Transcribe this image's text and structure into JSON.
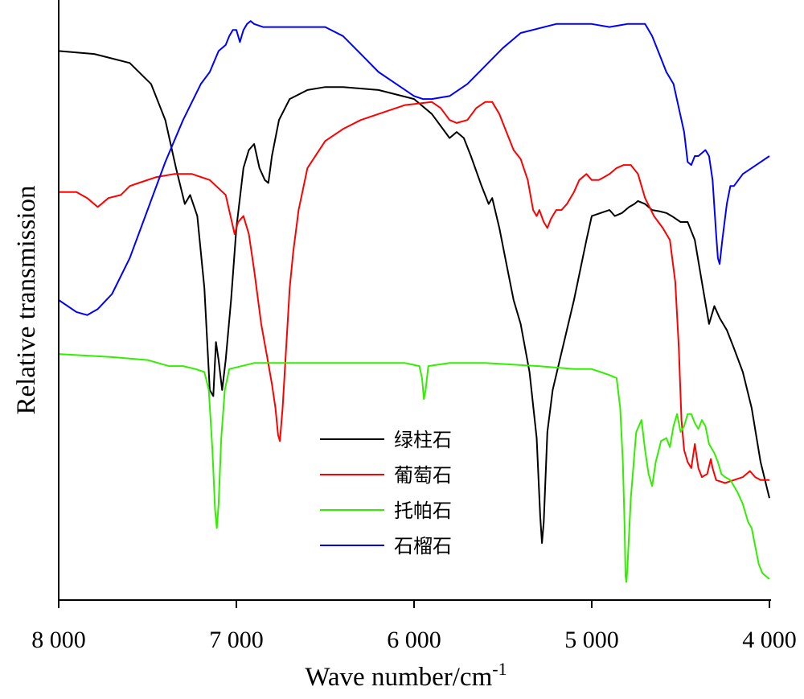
{
  "chart_data": {
    "type": "line",
    "xlabel": "Wave number/cm",
    "xlabel_sup": "-1",
    "ylabel": "Relative transmission",
    "xlim": [
      8000,
      4000
    ],
    "x_reversed": true,
    "ylim": [
      0,
      100
    ],
    "y_ticks_shown": false,
    "grid": false,
    "legend_position": "lower-center",
    "x_ticks": [
      8000,
      7000,
      6000,
      5000,
      4000
    ],
    "x_tick_labels": [
      "8 000",
      "7 000",
      "6 000",
      "5 000",
      "4 000"
    ],
    "series": [
      {
        "name": "绿柱石",
        "color": "#000000",
        "points": [
          [
            8000,
            91.5
          ],
          [
            7800,
            91
          ],
          [
            7600,
            89.5
          ],
          [
            7480,
            86
          ],
          [
            7400,
            80
          ],
          [
            7340,
            72
          ],
          [
            7290,
            66
          ],
          [
            7260,
            67.5
          ],
          [
            7220,
            64
          ],
          [
            7180,
            52
          ],
          [
            7150,
            35
          ],
          [
            7130,
            34
          ],
          [
            7115,
            43
          ],
          [
            7100,
            40
          ],
          [
            7080,
            35
          ],
          [
            7060,
            40
          ],
          [
            7030,
            50
          ],
          [
            7000,
            62
          ],
          [
            6960,
            72
          ],
          [
            6930,
            75
          ],
          [
            6900,
            76
          ],
          [
            6870,
            72
          ],
          [
            6840,
            70
          ],
          [
            6820,
            69.5
          ],
          [
            6800,
            74
          ],
          [
            6760,
            80
          ],
          [
            6700,
            83.5
          ],
          [
            6600,
            85
          ],
          [
            6500,
            85.5
          ],
          [
            6400,
            85.5
          ],
          [
            6200,
            85
          ],
          [
            6000,
            83.5
          ],
          [
            5900,
            81
          ],
          [
            5800,
            77
          ],
          [
            5760,
            78
          ],
          [
            5720,
            77
          ],
          [
            5680,
            74
          ],
          [
            5620,
            69
          ],
          [
            5580,
            66
          ],
          [
            5560,
            67
          ],
          [
            5520,
            62
          ],
          [
            5480,
            56
          ],
          [
            5440,
            50
          ],
          [
            5400,
            46
          ],
          [
            5350,
            38
          ],
          [
            5310,
            27
          ],
          [
            5290,
            14
          ],
          [
            5280,
            9.5
          ],
          [
            5270,
            13
          ],
          [
            5250,
            28
          ],
          [
            5220,
            35
          ],
          [
            5180,
            40
          ],
          [
            5100,
            50
          ],
          [
            5030,
            60
          ],
          [
            5000,
            64
          ],
          [
            4950,
            64.5
          ],
          [
            4900,
            65
          ],
          [
            4870,
            64
          ],
          [
            4830,
            64.5
          ],
          [
            4790,
            65.5
          ],
          [
            4760,
            66
          ],
          [
            4740,
            66.5
          ],
          [
            4700,
            66
          ],
          [
            4660,
            65
          ],
          [
            4620,
            64.8
          ],
          [
            4580,
            64.5
          ],
          [
            4550,
            64
          ],
          [
            4500,
            63
          ],
          [
            4460,
            63
          ],
          [
            4420,
            60
          ],
          [
            4380,
            53
          ],
          [
            4340,
            46
          ],
          [
            4310,
            49
          ],
          [
            4280,
            47
          ],
          [
            4240,
            45
          ],
          [
            4200,
            42
          ],
          [
            4150,
            38
          ],
          [
            4100,
            32
          ],
          [
            4050,
            23
          ],
          [
            4000,
            17
          ]
        ]
      },
      {
        "name": "葡萄石",
        "color": "#ff0000",
        "points": [
          [
            8000,
            68
          ],
          [
            7900,
            68
          ],
          [
            7840,
            67
          ],
          [
            7780,
            65.5
          ],
          [
            7720,
            67
          ],
          [
            7650,
            67.5
          ],
          [
            7600,
            69
          ],
          [
            7550,
            69.5
          ],
          [
            7450,
            70.5
          ],
          [
            7350,
            71
          ],
          [
            7250,
            71
          ],
          [
            7150,
            70
          ],
          [
            7060,
            67.5
          ],
          [
            7010,
            61
          ],
          [
            6990,
            63
          ],
          [
            6960,
            64
          ],
          [
            6930,
            61
          ],
          [
            6900,
            55
          ],
          [
            6860,
            46
          ],
          [
            6830,
            41
          ],
          [
            6800,
            36
          ],
          [
            6780,
            32
          ],
          [
            6765,
            27.5
          ],
          [
            6755,
            26.5
          ],
          [
            6740,
            32
          ],
          [
            6720,
            42
          ],
          [
            6700,
            52
          ],
          [
            6680,
            58
          ],
          [
            6650,
            65
          ],
          [
            6600,
            72
          ],
          [
            6500,
            76.5
          ],
          [
            6400,
            78.5
          ],
          [
            6300,
            80
          ],
          [
            6200,
            81
          ],
          [
            6050,
            82.5
          ],
          [
            5900,
            83
          ],
          [
            5850,
            82
          ],
          [
            5800,
            80
          ],
          [
            5760,
            79.5
          ],
          [
            5700,
            80
          ],
          [
            5650,
            82
          ],
          [
            5600,
            83
          ],
          [
            5560,
            83
          ],
          [
            5520,
            81
          ],
          [
            5480,
            78
          ],
          [
            5440,
            75
          ],
          [
            5400,
            73.5
          ],
          [
            5360,
            70
          ],
          [
            5330,
            65
          ],
          [
            5310,
            64
          ],
          [
            5295,
            65
          ],
          [
            5270,
            63
          ],
          [
            5250,
            62
          ],
          [
            5230,
            63.5
          ],
          [
            5200,
            65
          ],
          [
            5170,
            65
          ],
          [
            5140,
            66
          ],
          [
            5100,
            68
          ],
          [
            5070,
            70
          ],
          [
            5030,
            71
          ],
          [
            5000,
            70
          ],
          [
            4960,
            70
          ],
          [
            4930,
            70.5
          ],
          [
            4900,
            71
          ],
          [
            4860,
            72
          ],
          [
            4820,
            72.5
          ],
          [
            4780,
            72.5
          ],
          [
            4740,
            71
          ],
          [
            4700,
            67
          ],
          [
            4650,
            64
          ],
          [
            4600,
            62
          ],
          [
            4560,
            60
          ],
          [
            4530,
            53
          ],
          [
            4510,
            42
          ],
          [
            4495,
            30
          ],
          [
            4480,
            25
          ],
          [
            4460,
            23
          ],
          [
            4440,
            22
          ],
          [
            4420,
            26
          ],
          [
            4400,
            22
          ],
          [
            4380,
            20.5
          ],
          [
            4350,
            21
          ],
          [
            4330,
            23.5
          ],
          [
            4320,
            22
          ],
          [
            4300,
            20
          ],
          [
            4250,
            19.5
          ],
          [
            4200,
            20
          ],
          [
            4150,
            20.5
          ],
          [
            4110,
            21.5
          ],
          [
            4080,
            20.5
          ],
          [
            4050,
            20
          ],
          [
            4000,
            20
          ]
        ]
      },
      {
        "name": "托帕石",
        "color": "#33ee00",
        "points": [
          [
            8000,
            41
          ],
          [
            7700,
            40.5
          ],
          [
            7500,
            40
          ],
          [
            7380,
            39
          ],
          [
            7300,
            39
          ],
          [
            7230,
            38.5
          ],
          [
            7180,
            38
          ],
          [
            7155,
            35
          ],
          [
            7135,
            25
          ],
          [
            7120,
            15
          ],
          [
            7110,
            12
          ],
          [
            7100,
            16
          ],
          [
            7085,
            27
          ],
          [
            7065,
            35
          ],
          [
            7040,
            38.5
          ],
          [
            6900,
            39.5
          ],
          [
            6600,
            39.5
          ],
          [
            6300,
            39.5
          ],
          [
            6050,
            39.5
          ],
          [
            5970,
            39
          ],
          [
            5955,
            37
          ],
          [
            5945,
            33.5
          ],
          [
            5935,
            35
          ],
          [
            5920,
            39
          ],
          [
            5800,
            39.5
          ],
          [
            5600,
            39.5
          ],
          [
            5300,
            39
          ],
          [
            5100,
            38.5
          ],
          [
            5000,
            38.5
          ],
          [
            4950,
            38
          ],
          [
            4900,
            37.5
          ],
          [
            4860,
            37
          ],
          [
            4840,
            32
          ],
          [
            4825,
            23
          ],
          [
            4815,
            12
          ],
          [
            4810,
            4
          ],
          [
            4805,
            3
          ],
          [
            4800,
            5
          ],
          [
            4780,
            17
          ],
          [
            4750,
            28
          ],
          [
            4720,
            30
          ],
          [
            4700,
            25
          ],
          [
            4680,
            21
          ],
          [
            4660,
            19
          ],
          [
            4640,
            23
          ],
          [
            4610,
            26.5
          ],
          [
            4580,
            27
          ],
          [
            4560,
            25.5
          ],
          [
            4540,
            29
          ],
          [
            4520,
            31
          ],
          [
            4500,
            28
          ],
          [
            4480,
            29
          ],
          [
            4460,
            31
          ],
          [
            4440,
            31
          ],
          [
            4420,
            29.5
          ],
          [
            4400,
            28.5
          ],
          [
            4380,
            30
          ],
          [
            4360,
            29
          ],
          [
            4340,
            26
          ],
          [
            4310,
            24.5
          ],
          [
            4290,
            23
          ],
          [
            4270,
            21
          ],
          [
            4250,
            20.5
          ],
          [
            4220,
            20
          ],
          [
            4200,
            19
          ],
          [
            4180,
            18
          ],
          [
            4150,
            16
          ],
          [
            4120,
            13
          ],
          [
            4100,
            12
          ],
          [
            4080,
            9
          ],
          [
            4060,
            6
          ],
          [
            4040,
            4.5
          ],
          [
            4020,
            4
          ],
          [
            4000,
            3.5
          ]
        ]
      },
      {
        "name": "石榴石",
        "color": "#0000ff",
        "points": [
          [
            8000,
            50
          ],
          [
            7900,
            48
          ],
          [
            7840,
            47.5
          ],
          [
            7780,
            48.5
          ],
          [
            7700,
            51
          ],
          [
            7600,
            57
          ],
          [
            7500,
            65
          ],
          [
            7400,
            73
          ],
          [
            7300,
            80
          ],
          [
            7200,
            86
          ],
          [
            7150,
            88
          ],
          [
            7100,
            91.5
          ],
          [
            7060,
            92.5
          ],
          [
            7040,
            94
          ],
          [
            7020,
            95
          ],
          [
            7000,
            95
          ],
          [
            6980,
            93
          ],
          [
            6960,
            95
          ],
          [
            6940,
            96
          ],
          [
            6920,
            96.5
          ],
          [
            6900,
            96
          ],
          [
            6850,
            95.5
          ],
          [
            6700,
            95.5
          ],
          [
            6500,
            95.5
          ],
          [
            6400,
            94
          ],
          [
            6300,
            91
          ],
          [
            6200,
            88
          ],
          [
            6100,
            86
          ],
          [
            6000,
            84
          ],
          [
            5950,
            83.5
          ],
          [
            5900,
            83.5
          ],
          [
            5800,
            84
          ],
          [
            5700,
            86
          ],
          [
            5600,
            89
          ],
          [
            5500,
            92
          ],
          [
            5400,
            94.5
          ],
          [
            5200,
            96
          ],
          [
            5000,
            96
          ],
          [
            4900,
            95.5
          ],
          [
            4800,
            96
          ],
          [
            4700,
            96
          ],
          [
            4660,
            94
          ],
          [
            4620,
            91
          ],
          [
            4580,
            88
          ],
          [
            4540,
            86
          ],
          [
            4510,
            82
          ],
          [
            4480,
            78
          ],
          [
            4460,
            73
          ],
          [
            4440,
            72.5
          ],
          [
            4420,
            74
          ],
          [
            4400,
            74
          ],
          [
            4380,
            74.5
          ],
          [
            4360,
            75
          ],
          [
            4340,
            74
          ],
          [
            4320,
            70
          ],
          [
            4300,
            61
          ],
          [
            4290,
            57
          ],
          [
            4280,
            56
          ],
          [
            4265,
            60
          ],
          [
            4240,
            66
          ],
          [
            4220,
            69
          ],
          [
            4200,
            69
          ],
          [
            4150,
            71
          ],
          [
            4100,
            72
          ],
          [
            4050,
            73
          ],
          [
            4000,
            74
          ]
        ]
      }
    ]
  }
}
